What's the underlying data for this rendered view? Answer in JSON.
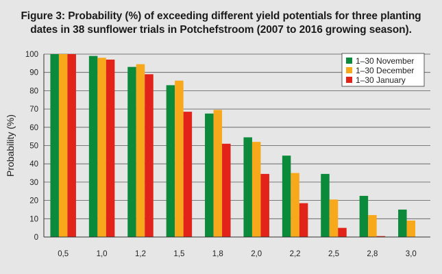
{
  "chart_data": {
    "type": "bar",
    "title_lines": [
      "Figure 3: Probability (%) of exceeding different yield potentials for three planting",
      "dates in 38 sunflower trials in Potchefstroom (2007 to 2016 growing season)."
    ],
    "xlabel": "",
    "ylabel": "Probability (%)",
    "ylim": [
      0,
      100
    ],
    "yticks": [
      0,
      10,
      20,
      30,
      40,
      50,
      60,
      70,
      80,
      90,
      100
    ],
    "grid": "horizontal",
    "legend_position": "top-right",
    "categories": [
      "0,5",
      "1,0",
      "1,2",
      "1,5",
      "1,8",
      "2,0",
      "2,2",
      "2,5",
      "2,8",
      "3,0"
    ],
    "series": [
      {
        "name": "1–30 November",
        "color": "#0a8a3a",
        "values": [
          100,
          99,
          93,
          83,
          67.5,
          54.5,
          44.5,
          34.5,
          22.5,
          15
        ]
      },
      {
        "name": "1–30 December",
        "color": "#f7a81b",
        "values": [
          100,
          98,
          94.5,
          85.5,
          69.5,
          52,
          35,
          20.5,
          12,
          9
        ]
      },
      {
        "name": "1–30 January",
        "color": "#e2231a",
        "values": [
          100,
          97,
          89,
          68.5,
          51,
          34.5,
          18.5,
          5,
          0.5,
          0
        ]
      }
    ]
  }
}
